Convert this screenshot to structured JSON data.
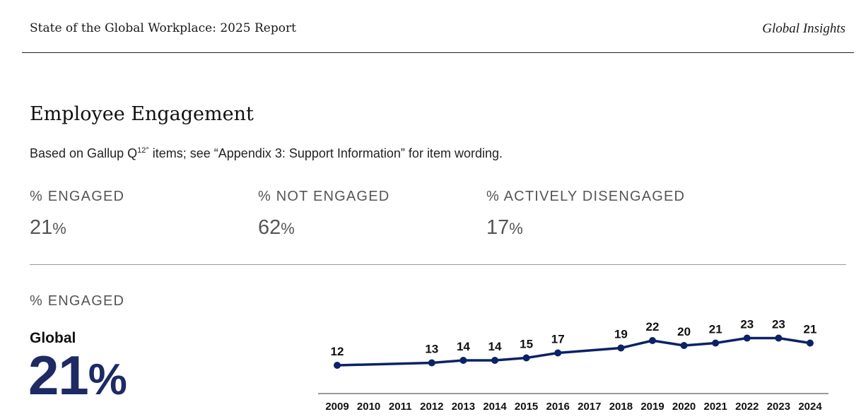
{
  "header": {
    "report_title": "State of the Global Workplace: 2025 Report",
    "brand": "Global Insights"
  },
  "section": {
    "title": "Employee Engagement",
    "subtitle_before": "Based on Gallup Q",
    "subtitle_sup": "12°",
    "subtitle_after": " items; see “Appendix 3: Support Information” for item wording."
  },
  "metrics": [
    {
      "label": "% ENGAGED",
      "value": "21",
      "unit": "%"
    },
    {
      "label": "% NOT ENGAGED",
      "value": "62",
      "unit": "%"
    },
    {
      "label": "% ACTIVELY DISENGAGED",
      "value": "17",
      "unit": "%"
    }
  ],
  "trend": {
    "label": "% ENGAGED",
    "region": "Global",
    "value": "21",
    "unit": "%"
  },
  "colors": {
    "line": "#0b2265",
    "big_value": "#1e2a63"
  },
  "chart_data": {
    "type": "line",
    "title": "",
    "xlabel": "",
    "ylabel": "",
    "x": [
      "2009",
      "2010",
      "2011",
      "2012",
      "2013",
      "2014",
      "2015",
      "2016",
      "2017",
      "2018",
      "2019",
      "2020",
      "2021",
      "2022",
      "2023",
      "2024"
    ],
    "series": [
      {
        "values": [
          12,
          null,
          null,
          13,
          14,
          14,
          15,
          17,
          null,
          19,
          22,
          20,
          21,
          23,
          23,
          21
        ],
        "labels": [
          "12",
          null,
          null,
          "13",
          "14",
          "14",
          "15",
          "17",
          null,
          "19",
          "22",
          "20",
          "21",
          "23",
          "23",
          "21"
        ]
      }
    ],
    "grid": false,
    "legend": "none"
  }
}
